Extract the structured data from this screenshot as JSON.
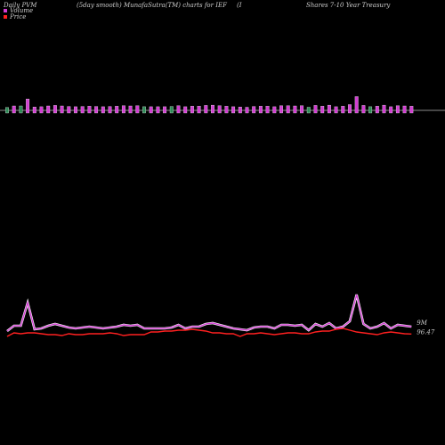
{
  "chart_data": {
    "type": "pvm",
    "title": "Daily PVM",
    "subtitle": "(5day smooth) MunafaSutra(TM) charts for IEF",
    "symbol_note": "(I",
    "name_note": "Shares 7-10  Year Treasury",
    "series": [
      {
        "name": "Volume",
        "color": "#d23dd2",
        "end_label": "9M",
        "values": [
          4,
          10,
          10,
          36,
          6,
          7,
          10,
          12,
          10,
          8,
          7,
          8,
          9,
          8,
          7,
          8,
          9,
          11,
          10,
          11,
          7,
          7,
          7,
          7,
          8,
          11,
          7,
          9,
          9,
          12,
          13,
          11,
          9,
          7,
          6,
          5,
          8,
          9,
          9,
          7,
          11,
          11,
          10,
          11,
          5,
          12,
          9,
          13,
          7,
          9,
          15,
          45,
          12,
          7,
          9,
          13,
          7,
          11,
          10,
          9
        ]
      },
      {
        "name": "Price",
        "color": "#ff2020",
        "end_label": "96.47",
        "values": [
          96.2,
          96.6,
          96.5,
          96.6,
          96.6,
          96.5,
          96.4,
          96.4,
          96.3,
          96.5,
          96.4,
          96.4,
          96.5,
          96.5,
          96.5,
          96.6,
          96.5,
          96.3,
          96.4,
          96.4,
          96.4,
          96.7,
          96.7,
          96.8,
          96.8,
          96.9,
          96.9,
          97.0,
          96.9,
          96.8,
          96.6,
          96.6,
          96.5,
          96.5,
          96.2,
          96.5,
          96.5,
          96.6,
          96.5,
          96.4,
          96.5,
          96.6,
          96.6,
          96.5,
          96.5,
          96.7,
          96.8,
          96.8,
          97.0,
          97.1,
          96.9,
          96.7,
          96.6,
          96.5,
          96.4,
          96.6,
          96.7,
          96.6,
          96.5,
          96.47
        ]
      }
    ],
    "bar_colors": [
      "#2e8b57",
      "#d23dd2",
      "#2e8b57",
      "#d23dd2",
      "#d23dd2",
      "#d23dd2",
      "#d23dd2",
      "#d23dd2",
      "#d23dd2",
      "#d23dd2",
      "#d23dd2",
      "#d23dd2",
      "#d23dd2",
      "#d23dd2",
      "#d23dd2",
      "#d23dd2",
      "#d23dd2",
      "#d23dd2",
      "#d23dd2",
      "#d23dd2",
      "#2e8b57",
      "#d23dd2",
      "#d23dd2",
      "#d23dd2",
      "#2e8b57",
      "#d23dd2",
      "#d23dd2",
      "#d23dd2",
      "#d23dd2",
      "#d23dd2",
      "#d23dd2",
      "#d23dd2",
      "#d23dd2",
      "#d23dd2",
      "#d23dd2",
      "#d23dd2",
      "#d23dd2",
      "#d23dd2",
      "#d23dd2",
      "#d23dd2",
      "#d23dd2",
      "#d23dd2",
      "#d23dd2",
      "#d23dd2",
      "#2e8b57",
      "#d23dd2",
      "#d23dd2",
      "#d23dd2",
      "#d23dd2",
      "#d23dd2",
      "#d23dd2",
      "#d23dd2",
      "#d23dd2",
      "#2e8b57",
      "#d23dd2",
      "#d23dd2",
      "#d23dd2",
      "#d23dd2",
      "#d23dd2",
      "#d23dd2"
    ]
  }
}
